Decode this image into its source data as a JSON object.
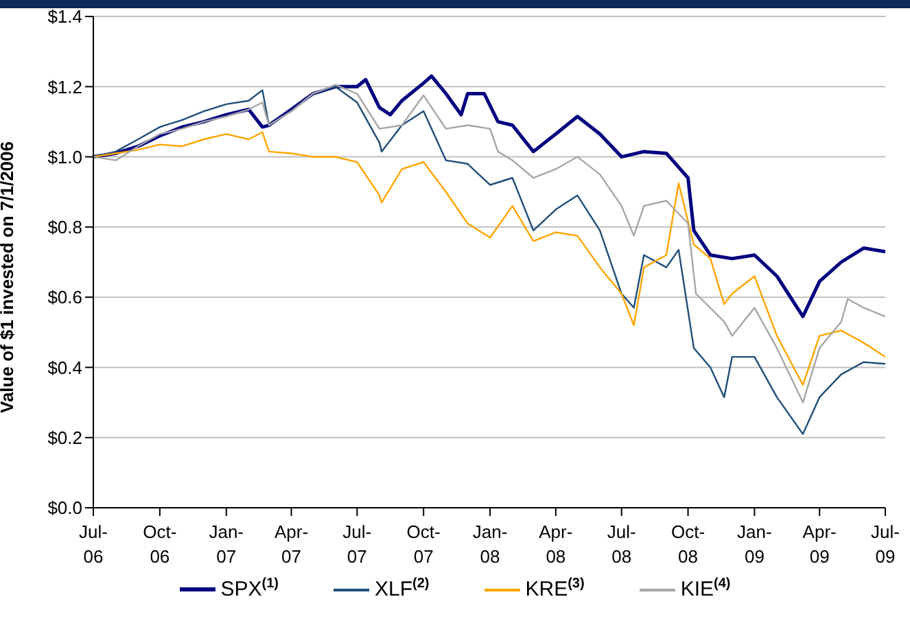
{
  "chart_data": {
    "type": "line",
    "ylabel": "Value of $1 invested on 7/1/2006",
    "xlim": [
      "2006-07-01",
      "2009-07-01"
    ],
    "xticks": [
      {
        "value": "2006-07-01",
        "label": "Jul-06"
      },
      {
        "value": "2006-10-01",
        "label": "Oct-06"
      },
      {
        "value": "2007-01-01",
        "label": "Jan-07"
      },
      {
        "value": "2007-04-01",
        "label": "Apr-07"
      },
      {
        "value": "2007-07-01",
        "label": "Jul-07"
      },
      {
        "value": "2007-10-01",
        "label": "Oct-07"
      },
      {
        "value": "2008-01-01",
        "label": "Jan-08"
      },
      {
        "value": "2008-04-01",
        "label": "Apr-08"
      },
      {
        "value": "2008-07-01",
        "label": "Jul-08"
      },
      {
        "value": "2008-10-01",
        "label": "Oct-08"
      },
      {
        "value": "2009-01-01",
        "label": "Jan-09"
      },
      {
        "value": "2009-04-01",
        "label": "Apr-09"
      },
      {
        "value": "2009-07-01",
        "label": "Jul-09"
      }
    ],
    "ylim": [
      0,
      1.4
    ],
    "yticks": [
      {
        "value": 0,
        "label": "$0.0"
      },
      {
        "value": 0.2,
        "label": "$0.2"
      },
      {
        "value": 0.4,
        "label": "$0.4"
      },
      {
        "value": 0.6,
        "label": "$0.6"
      },
      {
        "value": 0.8,
        "label": "$0.8"
      },
      {
        "value": 1,
        "label": "$1.0"
      },
      {
        "value": 1.2,
        "label": "$1.2"
      },
      {
        "value": 1.4,
        "label": "$1.4"
      }
    ],
    "grid": "y",
    "legend": "bottom",
    "marker": "none",
    "line_style": "solid",
    "series": [
      {
        "name": "SPX$^{(1)}$",
        "color": "#000080",
        "x": [
          "2006-07-01",
          "2006-08-01",
          "2006-09-01",
          "2006-10-01",
          "2006-11-01",
          "2006-12-01",
          "2007-01-01",
          "2007-02-01",
          "2007-02-20",
          "2007-03-01",
          "2007-04-01",
          "2007-05-01",
          "2007-06-01",
          "2007-07-01",
          "2007-07-13",
          "2007-08-01",
          "2007-08-16",
          "2007-09-01",
          "2007-10-01",
          "2007-10-12",
          "2007-11-01",
          "2007-11-22",
          "2007-12-01",
          "2007-12-24",
          "2008-01-12",
          "2008-02-01",
          "2008-03-01",
          "2008-04-01",
          "2008-05-01",
          "2008-06-01",
          "2008-07-01",
          "2008-08-01",
          "2008-09-01",
          "2008-10-01",
          "2008-10-09",
          "2008-11-01",
          "2008-12-01",
          "2009-01-01",
          "2009-02-01",
          "2009-03-09",
          "2009-04-01",
          "2009-05-01",
          "2009-06-01",
          "2009-07-01"
        ],
        "values": [
          1.0,
          1.01,
          1.03,
          1.06,
          1.085,
          1.1,
          1.12,
          1.135,
          1.085,
          1.09,
          1.135,
          1.18,
          1.2,
          1.2,
          1.22,
          1.14,
          1.12,
          1.16,
          1.21,
          1.23,
          1.18,
          1.12,
          1.18,
          1.18,
          1.1,
          1.09,
          1.015,
          1.065,
          1.115,
          1.065,
          1.0,
          1.015,
          1.01,
          0.94,
          0.79,
          0.72,
          0.71,
          0.72,
          0.66,
          0.545,
          0.645,
          0.7,
          0.74,
          0.73
        ]
      },
      {
        "name": "XLF$^{(2)}$",
        "color": "#1f4e79",
        "x": [
          "2006-07-01",
          "2006-08-01",
          "2006-09-01",
          "2006-10-01",
          "2006-11-01",
          "2006-12-01",
          "2007-01-01",
          "2007-02-01",
          "2007-02-20",
          "2007-03-01",
          "2007-04-01",
          "2007-05-01",
          "2007-06-01",
          "2007-07-01",
          "2007-08-01",
          "2007-08-04",
          "2007-09-01",
          "2007-10-01",
          "2007-11-01",
          "2007-12-01",
          "2008-01-01",
          "2008-02-01",
          "2008-03-01",
          "2008-04-01",
          "2008-05-01",
          "2008-06-01",
          "2008-07-01",
          "2008-07-18",
          "2008-08-01",
          "2008-09-01",
          "2008-09-18",
          "2008-10-09",
          "2008-11-01",
          "2008-11-20",
          "2008-12-01",
          "2009-01-01",
          "2009-02-01",
          "2009-03-09",
          "2009-04-01",
          "2009-05-01",
          "2009-06-01",
          "2009-07-01"
        ],
        "values": [
          1.0,
          1.015,
          1.05,
          1.085,
          1.105,
          1.13,
          1.15,
          1.16,
          1.19,
          1.09,
          1.13,
          1.18,
          1.2,
          1.155,
          1.04,
          1.015,
          1.09,
          1.13,
          0.99,
          0.98,
          0.92,
          0.94,
          0.79,
          0.85,
          0.89,
          0.79,
          0.61,
          0.57,
          0.72,
          0.685,
          0.735,
          0.455,
          0.4,
          0.315,
          0.43,
          0.43,
          0.315,
          0.21,
          0.315,
          0.38,
          0.415,
          0.41
        ]
      },
      {
        "name": "KRE$^{(3)}$",
        "color": "#ffa500",
        "x": [
          "2006-07-01",
          "2006-08-01",
          "2006-09-01",
          "2006-10-01",
          "2006-11-01",
          "2006-12-01",
          "2007-01-01",
          "2007-02-01",
          "2007-02-20",
          "2007-03-01",
          "2007-04-01",
          "2007-05-01",
          "2007-06-01",
          "2007-07-01",
          "2007-08-01",
          "2007-08-04",
          "2007-09-01",
          "2007-10-01",
          "2007-11-01",
          "2007-12-01",
          "2008-01-01",
          "2008-02-01",
          "2008-03-01",
          "2008-04-01",
          "2008-05-01",
          "2008-06-01",
          "2008-07-01",
          "2008-07-18",
          "2008-08-01",
          "2008-09-01",
          "2008-09-18",
          "2008-10-09",
          "2008-11-01",
          "2008-11-20",
          "2008-12-01",
          "2009-01-01",
          "2009-02-01",
          "2009-03-09",
          "2009-04-01",
          "2009-05-01",
          "2009-06-01",
          "2009-07-01"
        ],
        "values": [
          1.0,
          1.01,
          1.02,
          1.035,
          1.03,
          1.05,
          1.065,
          1.05,
          1.07,
          1.015,
          1.01,
          1.0,
          1.0,
          0.985,
          0.89,
          0.87,
          0.965,
          0.985,
          0.9,
          0.81,
          0.77,
          0.86,
          0.76,
          0.785,
          0.775,
          0.685,
          0.61,
          0.52,
          0.685,
          0.72,
          0.925,
          0.75,
          0.71,
          0.58,
          0.61,
          0.66,
          0.49,
          0.35,
          0.49,
          0.505,
          0.47,
          0.43
        ]
      },
      {
        "name": "KIE$^{(4)}$",
        "color": "#a6a6a6",
        "x": [
          "2006-07-01",
          "2006-08-01",
          "2006-09-01",
          "2006-10-01",
          "2006-11-01",
          "2006-12-01",
          "2007-01-01",
          "2007-02-01",
          "2007-02-20",
          "2007-03-01",
          "2007-04-01",
          "2007-05-01",
          "2007-06-01",
          "2007-07-01",
          "2007-08-01",
          "2007-09-01",
          "2007-10-01",
          "2007-11-01",
          "2007-12-01",
          "2008-01-01",
          "2008-01-12",
          "2008-02-01",
          "2008-03-01",
          "2008-04-01",
          "2008-05-01",
          "2008-06-01",
          "2008-07-01",
          "2008-07-18",
          "2008-08-01",
          "2008-09-01",
          "2008-10-01",
          "2008-10-12",
          "2008-11-20",
          "2008-12-01",
          "2009-01-01",
          "2009-02-01",
          "2009-03-09",
          "2009-04-01",
          "2009-05-01",
          "2009-05-10",
          "2009-06-01",
          "2009-07-01"
        ],
        "values": [
          1.0,
          0.99,
          1.03,
          1.065,
          1.08,
          1.1,
          1.115,
          1.135,
          1.155,
          1.09,
          1.13,
          1.18,
          1.205,
          1.18,
          1.08,
          1.09,
          1.175,
          1.08,
          1.09,
          1.08,
          1.015,
          0.99,
          0.94,
          0.965,
          1.0,
          0.95,
          0.86,
          0.775,
          0.86,
          0.875,
          0.81,
          0.61,
          0.53,
          0.49,
          0.57,
          0.455,
          0.3,
          0.455,
          0.53,
          0.595,
          0.57,
          0.545
        ]
      }
    ]
  }
}
